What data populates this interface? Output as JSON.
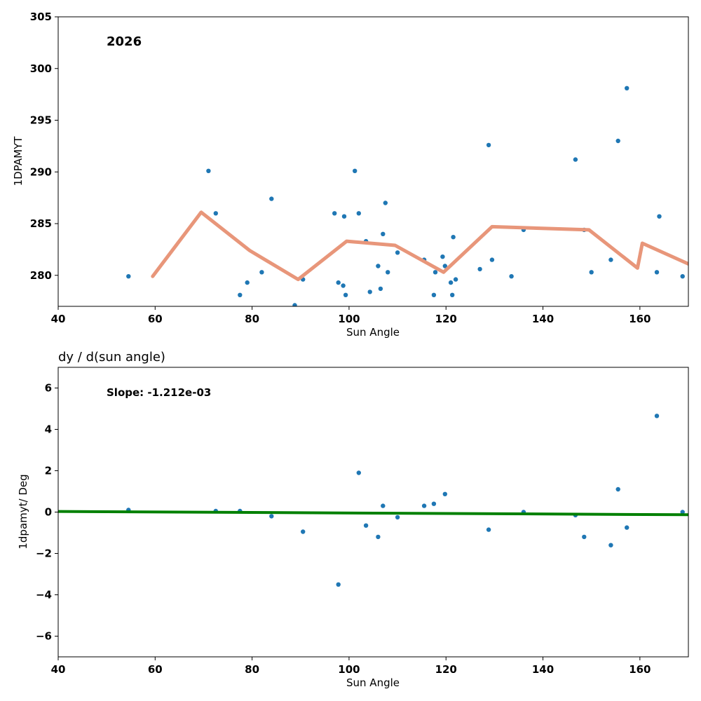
{
  "chart_data": [
    {
      "type": "scatter",
      "title": "",
      "annotation": "2026",
      "xlabel": "Sun Angle",
      "ylabel": "1DPAMYT",
      "xlim": [
        40,
        170
      ],
      "ylim": [
        277,
        305
      ],
      "xticks": [
        40,
        60,
        80,
        100,
        120,
        140,
        160
      ],
      "yticks": [
        280,
        285,
        290,
        295,
        300,
        305
      ],
      "point_color": "#1f77b4",
      "line_color": "#e8967a",
      "points": {
        "x": [
          54.5,
          71.0,
          72.5,
          77.5,
          79.0,
          82.0,
          84.0,
          88.8,
          90.5,
          97.0,
          97.8,
          98.8,
          99.0,
          99.3,
          101.2,
          102.0,
          103.5,
          104.3,
          106.0,
          106.5,
          107.0,
          107.5,
          108.0,
          110.0,
          115.5,
          117.5,
          117.8,
          119.3,
          119.8,
          121.0,
          121.3,
          121.5,
          122.0,
          127.0,
          128.8,
          129.5,
          133.5,
          136.0,
          146.7,
          148.5,
          150.0,
          154.0,
          155.5,
          157.3,
          163.5,
          164.0,
          168.8
        ],
        "y": [
          279.9,
          290.1,
          286.0,
          278.1,
          279.3,
          280.3,
          287.4,
          277.1,
          279.6,
          286.0,
          279.3,
          279.0,
          285.7,
          278.1,
          290.1,
          286.0,
          283.3,
          278.4,
          280.9,
          278.7,
          284.0,
          287.0,
          280.3,
          282.2,
          281.5,
          278.1,
          280.3,
          281.8,
          280.9,
          279.3,
          278.1,
          283.7,
          279.6,
          280.6,
          292.6,
          281.5,
          279.9,
          284.4,
          291.2,
          284.4,
          280.3,
          281.5,
          293.0,
          298.1,
          280.3,
          285.7,
          279.9
        ]
      },
      "series": [
        {
          "name": "smoothed",
          "x": [
            59.5,
            69.5,
            79.5,
            89.5,
            99.5,
            109.5,
            119.5,
            129.5,
            149.5,
            159.5,
            160.5,
            170.0
          ],
          "y": [
            279.9,
            286.1,
            282.4,
            279.6,
            283.3,
            282.9,
            280.3,
            284.7,
            284.4,
            280.7,
            283.1,
            281.1
          ]
        }
      ]
    },
    {
      "type": "scatter",
      "title": "dy / d(sun angle)",
      "annotation": "Slope: -1.212e-03",
      "xlabel": "Sun Angle",
      "ylabel": "1dpamyt/ Deg",
      "xlim": [
        40,
        170
      ],
      "ylim": [
        -7,
        7
      ],
      "xticks": [
        40,
        60,
        80,
        100,
        120,
        140,
        160
      ],
      "yticks": [
        -6,
        -4,
        -2,
        0,
        2,
        4,
        6
      ],
      "point_color": "#1f77b4",
      "line_color": "#008000",
      "points": {
        "x": [
          54.5,
          72.5,
          77.5,
          84.0,
          90.5,
          97.8,
          102.0,
          103.5,
          106.0,
          107.0,
          110.0,
          115.5,
          117.5,
          119.8,
          128.8,
          136.0,
          146.7,
          148.5,
          154.0,
          155.5,
          157.3,
          163.5,
          168.8
        ],
        "y": [
          0.1,
          0.05,
          0.05,
          -0.2,
          -0.95,
          -3.5,
          1.9,
          -0.65,
          -1.2,
          0.3,
          -0.25,
          0.3,
          0.4,
          0.87,
          -0.85,
          0.0,
          -0.15,
          -1.2,
          -1.6,
          1.1,
          -0.75,
          4.65,
          0.0
        ]
      },
      "series": [
        {
          "name": "fit",
          "x": [
            40,
            170
          ],
          "y": [
            0.03,
            -0.13
          ]
        }
      ]
    }
  ]
}
